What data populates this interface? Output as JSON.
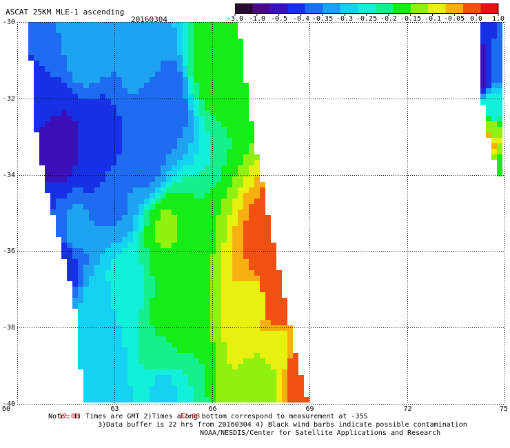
{
  "header": {
    "title": "ASCAT 25KM MLE-1 ascending",
    "date": "20160304"
  },
  "colorbar": {
    "ticks": [
      "-3.0",
      "-1.0",
      "-0.5",
      "-0.4",
      "-0.35",
      "-0.3",
      "-0.25",
      "-0.2",
      "-0.15",
      "-0.1",
      "-0.05",
      "0.0",
      "1.0"
    ],
    "colors": [
      "#2a0a30",
      "#4b0a80",
      "#3a10b8",
      "#1630e6",
      "#1e6cf0",
      "#1ea3f0",
      "#16d2f2",
      "#12f0da",
      "#14f08c",
      "#16ec16",
      "#90f010",
      "#e8f010",
      "#f8b010",
      "#f05010",
      "#e81010"
    ]
  },
  "chart_data": {
    "type": "heatmap",
    "title": "ASCAT 25KM MLE-1 ascending",
    "date": "20160304",
    "xlim": [
      60,
      75
    ],
    "ylim": [
      -40,
      -30
    ],
    "x_ticks": [
      "60",
      "63",
      "66",
      "69",
      "72",
      "75"
    ],
    "x_tick_values": [
      60,
      63,
      66,
      69,
      72,
      75
    ],
    "y_ticks": [
      "-30",
      "-32",
      "-34",
      "-36",
      "-38",
      "-40"
    ],
    "y_tick_values": [
      -30,
      -32,
      -34,
      -36,
      -38,
      -40
    ],
    "time_labels": [
      {
        "text": "17:08",
        "lon": 61.6
      },
      {
        "text": "17:08",
        "lon": 65.3
      }
    ],
    "grid": true,
    "swaths": [
      {
        "name": "swath-main",
        "left_edge": [
          [
            -30,
            60.4
          ],
          [
            -32,
            60.45
          ],
          [
            -34,
            60.8
          ],
          [
            -36,
            61.4
          ],
          [
            -38,
            61.9
          ],
          [
            -40,
            62.0
          ]
        ],
        "right_edge": [
          [
            -30,
            66.8
          ],
          [
            -32,
            67.1
          ],
          [
            -34,
            67.5
          ],
          [
            -36,
            67.95
          ],
          [
            -38,
            68.4
          ],
          [
            -40,
            68.95
          ]
        ]
      },
      {
        "name": "swath-east",
        "left_edge": [
          [
            -30,
            74.3
          ],
          [
            -31,
            74.2
          ],
          [
            -32,
            74.3
          ],
          [
            -33,
            74.5
          ],
          [
            -34,
            74.8
          ]
        ],
        "right_edge": [
          [
            -30,
            75
          ],
          [
            -34,
            75
          ]
        ]
      }
    ],
    "samples": [
      {
        "lat": -30.6,
        "lon": 62.0,
        "value": -0.33
      },
      {
        "lat": -30.8,
        "lon": 64.0,
        "value": -0.33
      },
      {
        "lat": -31.0,
        "lon": 66.0,
        "value": -0.15
      },
      {
        "lat": -31.6,
        "lon": 60.9,
        "value": -0.4
      },
      {
        "lat": -32.0,
        "lon": 64.5,
        "value": -0.4
      },
      {
        "lat": -33.2,
        "lon": 61.3,
        "value": -0.52
      },
      {
        "lat": -33.4,
        "lon": 62.5,
        "value": -0.45
      },
      {
        "lat": -33.6,
        "lon": 64.0,
        "value": -0.37
      },
      {
        "lat": -34.6,
        "lon": 63.0,
        "value": -0.36
      },
      {
        "lat": -35.5,
        "lon": 61.8,
        "value": -0.35
      },
      {
        "lat": -35.4,
        "lon": 64.6,
        "value": -0.14
      },
      {
        "lat": -36.3,
        "lon": 61.4,
        "value": -0.43
      },
      {
        "lat": -37.0,
        "lon": 63.3,
        "value": -0.24
      },
      {
        "lat": -36.6,
        "lon": 65.0,
        "value": -0.16
      },
      {
        "lat": -37.5,
        "lon": 62.5,
        "value": -0.3
      },
      {
        "lat": -37.8,
        "lon": 64.8,
        "value": -0.15
      },
      {
        "lat": -37.3,
        "lon": 67.4,
        "value": -0.09
      },
      {
        "lat": -37.0,
        "lon": 67.85,
        "value": 0.2
      },
      {
        "lat": -38.5,
        "lon": 62.5,
        "value": -0.29
      },
      {
        "lat": -38.7,
        "lon": 64.5,
        "value": -0.19
      },
      {
        "lat": -38.6,
        "lon": 68.0,
        "value": -0.08
      },
      {
        "lat": -39.5,
        "lon": 62.6,
        "value": -0.3
      },
      {
        "lat": -39.5,
        "lon": 64.5,
        "value": -0.28
      },
      {
        "lat": -39.4,
        "lon": 67.6,
        "value": -0.12
      },
      {
        "lat": -39.2,
        "lon": 68.8,
        "value": 0.1
      },
      {
        "lat": -31.2,
        "lon": 74.8,
        "value": -0.38
      },
      {
        "lat": -31.3,
        "lon": 74.2,
        "value": -0.55
      },
      {
        "lat": -32.3,
        "lon": 74.7,
        "value": -0.25
      },
      {
        "lat": -32.9,
        "lon": 74.6,
        "value": -0.12
      },
      {
        "lat": -33.1,
        "lon": 74.5,
        "value": 0.05
      },
      {
        "lat": -33.7,
        "lon": 74.8,
        "value": -0.15
      }
    ]
  },
  "footer": {
    "note_line1": "Note: 1) Times are GMT 2)Times along bottom correspond to measurement at -35S",
    "note_line2": "3)Data buffer is 22 hrs from 20160304 4) Black wind barbs indicate possible contamination",
    "note_line3": "NOAA/NESDIS/Center for Satellite Applications and Research"
  }
}
